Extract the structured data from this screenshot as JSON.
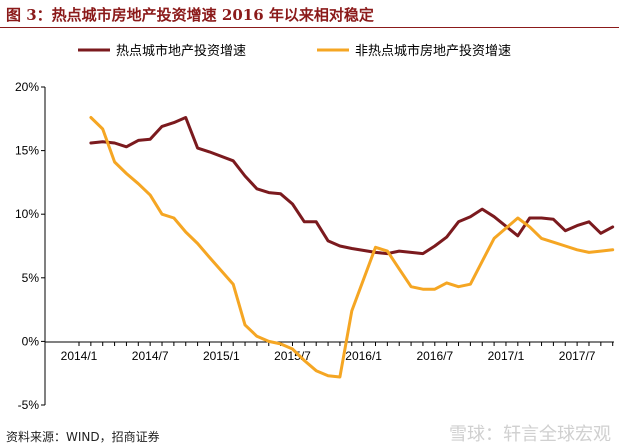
{
  "title": "图 3：热点城市房地产投资增速 2016 年以来相对稳定",
  "source": "资料来源：WIND，招商证券",
  "watermark": "雪球：轩言全球宏观",
  "chart_data": {
    "type": "line",
    "title": "图 3：热点城市房地产投资增速 2016 年以来相对稳定",
    "xlabel": "",
    "ylabel": "",
    "ylim": [
      -5,
      20
    ],
    "yticks": [
      -5,
      0,
      5,
      10,
      15,
      20
    ],
    "ytick_labels": [
      "-5%",
      "0%",
      "5%",
      "10%",
      "15%",
      "20%"
    ],
    "xticks": [
      "2014/1",
      "2014/7",
      "2015/1",
      "2015/7",
      "2016/1",
      "2016/7",
      "2017/1",
      "2017/7"
    ],
    "legend": "top",
    "grid": false,
    "colors": {
      "hot": "#7B1A1E",
      "non_hot": "#F5A623",
      "axis": "#000000"
    },
    "series": [
      {
        "name": "热点城市地产投资增速",
        "color": "#7B1A1E",
        "x": [
          "2014/2",
          "2014/3",
          "2014/4",
          "2014/5",
          "2014/6",
          "2014/7",
          "2014/8",
          "2014/9",
          "2014/10",
          "2014/11",
          "2014/12",
          "2015/2",
          "2015/3",
          "2015/4",
          "2015/5",
          "2015/6",
          "2015/7",
          "2015/8",
          "2015/9",
          "2015/10",
          "2015/11",
          "2015/12",
          "2016/2",
          "2016/3",
          "2016/4",
          "2016/5",
          "2016/6",
          "2016/7",
          "2016/8",
          "2016/9",
          "2016/10",
          "2016/11",
          "2016/12",
          "2017/2",
          "2017/3",
          "2017/4",
          "2017/5",
          "2017/6",
          "2017/7",
          "2017/8",
          "2017/9",
          "2017/10"
        ],
        "values": [
          15.6,
          15.7,
          15.6,
          15.3,
          15.8,
          15.9,
          16.9,
          17.2,
          17.6,
          15.2,
          14.9,
          14.2,
          13.0,
          12.0,
          11.7,
          11.6,
          10.8,
          9.4,
          9.4,
          7.9,
          7.5,
          7.3,
          7.0,
          6.9,
          7.1,
          7.0,
          6.9,
          7.5,
          8.2,
          9.4,
          9.8,
          10.4,
          9.8,
          8.3,
          9.7,
          9.7,
          9.6,
          8.7,
          9.1,
          9.4,
          8.5,
          9.0
        ]
      },
      {
        "name": "非热点城市房地产投资增速",
        "color": "#F5A623",
        "x": [
          "2014/2",
          "2014/3",
          "2014/4",
          "2014/5",
          "2014/6",
          "2014/7",
          "2014/8",
          "2014/9",
          "2014/10",
          "2014/11",
          "2014/12",
          "2015/2",
          "2015/3",
          "2015/4",
          "2015/5",
          "2015/6",
          "2015/7",
          "2015/8",
          "2015/9",
          "2015/10",
          "2015/11",
          "2015/12",
          "2016/2",
          "2016/3",
          "2016/4",
          "2016/5",
          "2016/6",
          "2016/7",
          "2016/8",
          "2016/9",
          "2016/10",
          "2016/11",
          "2016/12",
          "2017/2",
          "2017/3",
          "2017/4",
          "2017/5",
          "2017/6",
          "2017/7",
          "2017/8",
          "2017/9",
          "2017/10"
        ],
        "values": [
          17.6,
          16.7,
          14.1,
          13.2,
          12.4,
          11.5,
          10.0,
          9.7,
          8.6,
          7.7,
          6.6,
          4.5,
          1.3,
          0.4,
          0.0,
          -0.2,
          -0.6,
          -1.5,
          -2.3,
          -2.7,
          -2.8,
          2.4,
          7.4,
          7.1,
          5.7,
          4.3,
          4.1,
          4.1,
          4.6,
          4.3,
          4.5,
          6.3,
          8.1,
          9.7,
          9.0,
          8.1,
          7.8,
          7.5,
          7.2,
          7.0,
          7.1,
          7.2
        ]
      }
    ]
  }
}
